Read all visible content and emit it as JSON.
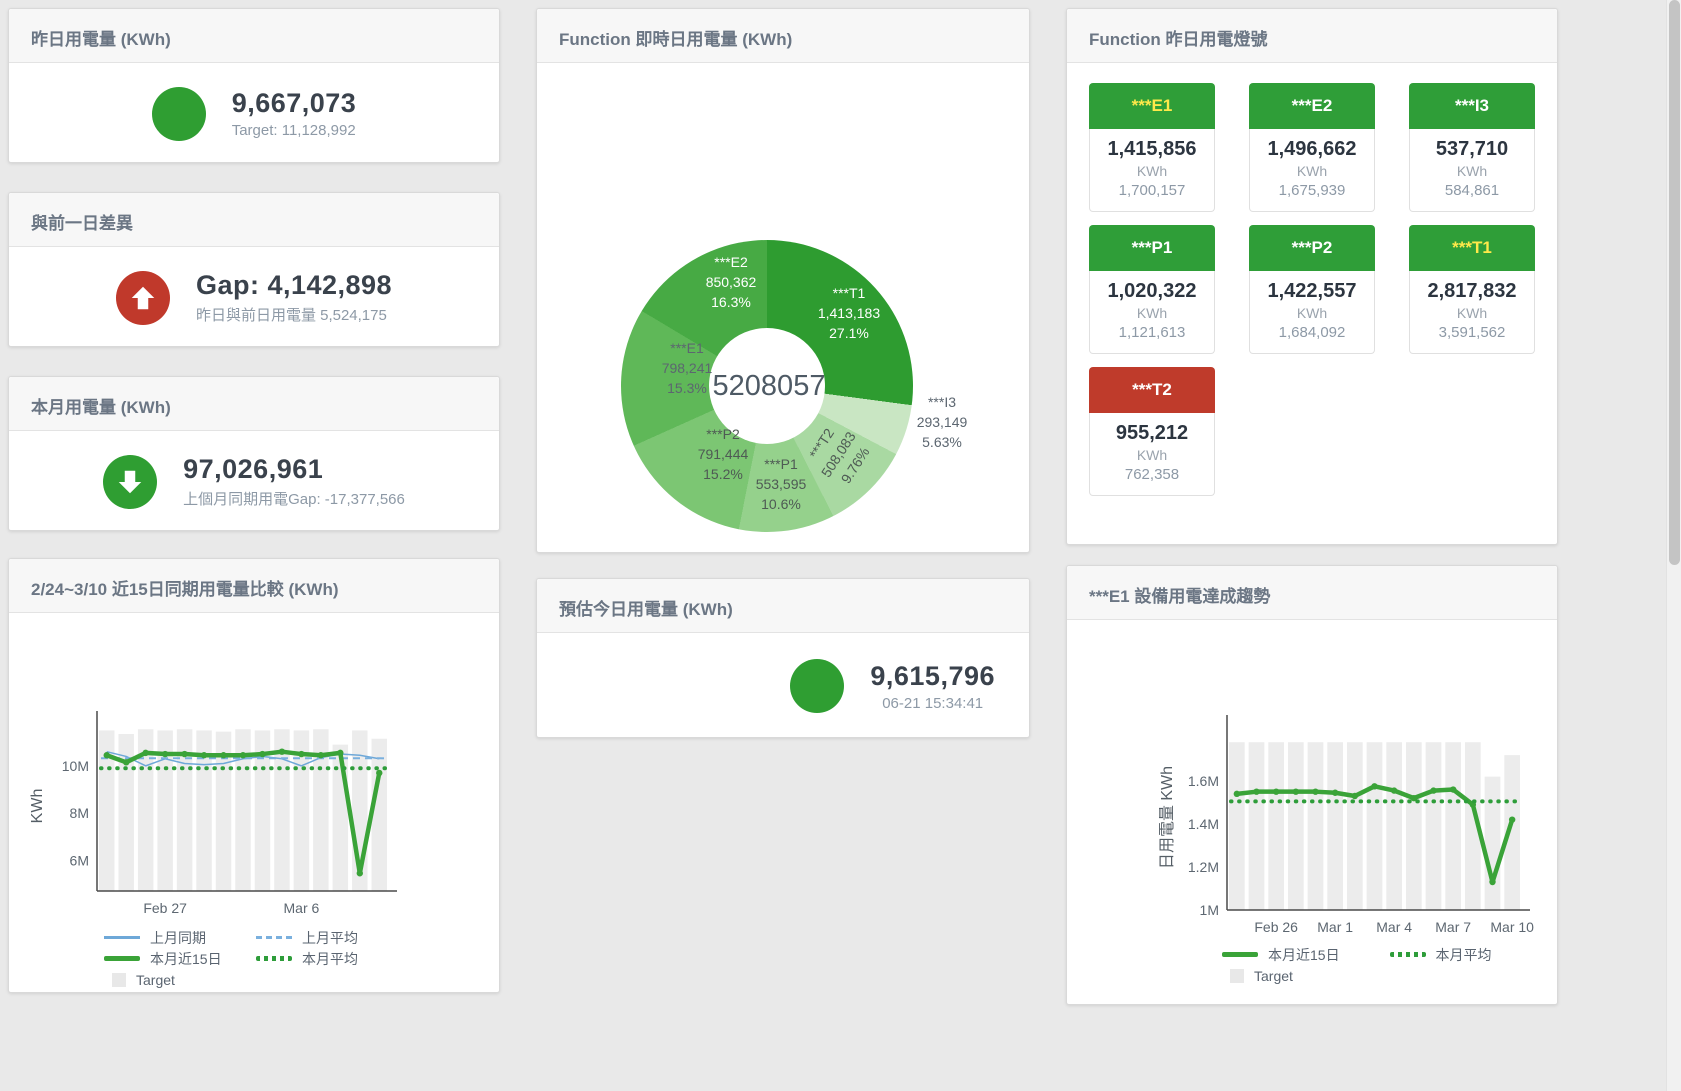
{
  "colors": {
    "green": "#2f9e32",
    "red": "#c0392b",
    "tile_green": "#2f9e38",
    "tile_red": "#bf3b2b"
  },
  "panels": {
    "yesterday": {
      "title": "昨日用電量 (KWh)",
      "value": "9,667,073",
      "subtitle": "Target: 11,128,992",
      "status_color": "#2f9e32"
    },
    "day_gap": {
      "title": "與前一日差異",
      "value": "Gap: 4,142,898",
      "subtitle": "昨日與前日用電量 5,524,175",
      "status_color": "#c0392b"
    },
    "month": {
      "title": "本月用電量 (KWh)",
      "value": "97,026,961",
      "subtitle": "上個月同期用電Gap: -17,377,566",
      "status_color": "#2f9e32"
    },
    "estimate": {
      "title": "預估今日用電量 (KWh)",
      "value": "9,615,796",
      "subtitle": "06-21 15:34:41",
      "status_color": "#2f9e32"
    },
    "realtime_donut": {
      "title": "Function 即時日用電量 (KWh)"
    },
    "lights": {
      "title": "Function 昨日用電燈號",
      "unit": "KWh",
      "tiles": [
        {
          "name": "***E1",
          "value": "1,415,856",
          "target": "1,700,157",
          "header_color": "#2f9e38",
          "label_color": "#ffe94a"
        },
        {
          "name": "***E2",
          "value": "1,496,662",
          "target": "1,675,939",
          "header_color": "#2f9e38",
          "label_color": "#ffffff"
        },
        {
          "name": "***I3",
          "value": "537,710",
          "target": "584,861",
          "header_color": "#2f9e38",
          "label_color": "#ffffff"
        },
        {
          "name": "***P1",
          "value": "1,020,322",
          "target": "1,121,613",
          "header_color": "#2f9e38",
          "label_color": "#ffffff"
        },
        {
          "name": "***P2",
          "value": "1,422,557",
          "target": "1,684,092",
          "header_color": "#2f9e38",
          "label_color": "#ffffff"
        },
        {
          "name": "***T1",
          "value": "2,817,832",
          "target": "3,591,562",
          "header_color": "#2f9e38",
          "label_color": "#ffe94a"
        },
        {
          "name": "***T2",
          "value": "955,212",
          "target": "762,358",
          "header_color": "#bf3b2b",
          "label_color": "#ffffff"
        }
      ]
    },
    "compare": {
      "title": "2/24~3/10 近15日同期用電量比較 (KWh)"
    },
    "trend": {
      "title": "***E1 設備用電達成趨勢"
    }
  },
  "chart_data": [
    {
      "type": "pie",
      "variant": "donut",
      "title": "Function 即時日用電量 (KWh)",
      "center_total": "5208057",
      "slices": [
        {
          "name": "***T1",
          "value": "1,413,183",
          "pct": "27.1%",
          "pct_num": 27.1,
          "color": "#2e9c30",
          "label_color": "#ffffff"
        },
        {
          "name": "***I3",
          "value": "293,149",
          "pct": "5.63%",
          "pct_num": 5.63,
          "color": "#c9e6c3",
          "label_color": "#5c6670"
        },
        {
          "name": "***T2",
          "value": "508,083",
          "pct": "9.76%",
          "pct_num": 9.76,
          "color": "#a9d9a2",
          "label_color": "#4e5a54"
        },
        {
          "name": "***P1",
          "value": "553,595",
          "pct": "10.6%",
          "pct_num": 10.6,
          "color": "#95d18c",
          "label_color": "#4e5a54"
        },
        {
          "name": "***P2",
          "value": "791,444",
          "pct": "15.2%",
          "pct_num": 15.2,
          "color": "#7cc673",
          "label_color": "#4e5a54"
        },
        {
          "name": "***E1",
          "value": "798,241",
          "pct": "15.3%",
          "pct_num": 15.3,
          "color": "#5fb858",
          "label_color": "#5c6670"
        },
        {
          "name": "***E2",
          "value": "850,362",
          "pct": "16.3%",
          "pct_num": 16.3,
          "color": "#47aa44",
          "label_color": "#ffffff"
        }
      ]
    },
    {
      "type": "line",
      "title": "2/24~3/10 近15日同期用電量比較 (KWh)",
      "ylabel": "KWh",
      "unit": "M",
      "ylim": [
        4.7,
        11.9
      ],
      "yticks": [
        {
          "label": "6M",
          "value": 6
        },
        {
          "label": "8M",
          "value": 8
        },
        {
          "label": "10M",
          "value": 10
        }
      ],
      "categories": [
        "2/24",
        "2/25",
        "2/26",
        "2/27",
        "2/28",
        "3/1",
        "3/2",
        "3/3",
        "3/4",
        "3/5",
        "3/6",
        "3/7",
        "3/8",
        "3/9",
        "3/10"
      ],
      "xticks": [
        {
          "label": "Feb 27",
          "index": 3
        },
        {
          "label": "Mar 6",
          "index": 10
        }
      ],
      "bars": {
        "name": "Target",
        "color": "#ececec",
        "values": [
          11.5,
          11.35,
          11.55,
          11.5,
          11.55,
          11.5,
          11.45,
          11.55,
          11.5,
          11.55,
          11.5,
          11.55,
          10.9,
          11.5,
          11.15
        ]
      },
      "series": [
        {
          "name": "上月同期",
          "color": "#6ea8d8",
          "width": 1.5,
          "dash": "solid",
          "values": [
            10.6,
            10.4,
            10.0,
            10.3,
            10.1,
            10.05,
            10.1,
            10.3,
            10.4,
            10.3,
            10.0,
            10.35,
            10.5,
            10.45,
            10.3
          ]
        },
        {
          "name": "上月平均",
          "color": "#7ab0de",
          "width": 2,
          "dash": "dashed",
          "constant": 10.32
        },
        {
          "name": "本月近15日",
          "color": "#3aa338",
          "width": 4.5,
          "dash": "solid",
          "markers": true,
          "values": [
            10.45,
            10.15,
            10.55,
            10.5,
            10.5,
            10.45,
            10.45,
            10.45,
            10.5,
            10.6,
            10.5,
            10.45,
            10.55,
            5.45,
            9.7
          ]
        },
        {
          "name": "本月平均",
          "color": "#2e9d3a",
          "width": 4,
          "dash": "dotted",
          "constant": 9.9
        }
      ],
      "legend_rows": [
        [
          {
            "label": "上月同期",
            "swatch": "line",
            "color": "#6ea8d8"
          },
          {
            "label": "上月平均",
            "swatch": "dashed",
            "color": "#7ab0de"
          }
        ],
        [
          {
            "label": "本月近15日",
            "swatch": "thick",
            "color": "#3aa338"
          },
          {
            "label": "本月平均",
            "swatch": "dotted",
            "color": "#2e9d3a"
          }
        ],
        [
          {
            "label": "Target",
            "swatch": "box",
            "color": "#e8e8e8"
          }
        ]
      ],
      "legend_position": "bottom-left",
      "grid": false
    },
    {
      "type": "line",
      "title": "***E1 設備用電達成趨勢",
      "ylabel": "日用電量 KWh",
      "unit": "M",
      "ylim": [
        1.0,
        1.86
      ],
      "yticks": [
        {
          "label": "1M",
          "value": 1
        },
        {
          "label": "1.2M",
          "value": 1.2
        },
        {
          "label": "1.4M",
          "value": 1.4
        },
        {
          "label": "1.6M",
          "value": 1.6
        }
      ],
      "categories": [
        "2/24",
        "2/25",
        "2/26",
        "2/27",
        "2/28",
        "3/1",
        "3/2",
        "3/3",
        "3/4",
        "3/5",
        "3/6",
        "3/7",
        "3/8",
        "3/9",
        "3/10"
      ],
      "xticks": [
        {
          "label": "Feb 26",
          "index": 2
        },
        {
          "label": "Mar 1",
          "index": 5
        },
        {
          "label": "Mar 4",
          "index": 8
        },
        {
          "label": "Mar 7",
          "index": 11
        },
        {
          "label": "Mar 10",
          "index": 14
        }
      ],
      "bars": {
        "name": "Target",
        "color": "#ececec",
        "values": [
          1.78,
          1.78,
          1.78,
          1.78,
          1.78,
          1.78,
          1.78,
          1.78,
          1.78,
          1.78,
          1.78,
          1.78,
          1.78,
          1.62,
          1.72
        ]
      },
      "series": [
        {
          "name": "本月近15日",
          "color": "#3aa338",
          "width": 4.5,
          "dash": "solid",
          "markers": true,
          "values": [
            1.54,
            1.55,
            1.55,
            1.55,
            1.55,
            1.545,
            1.53,
            1.575,
            1.555,
            1.52,
            1.555,
            1.56,
            1.49,
            1.13,
            1.42
          ]
        },
        {
          "name": "本月平均",
          "color": "#2e9d3a",
          "width": 4,
          "dash": "dotted",
          "constant": 1.505
        }
      ],
      "legend_rows": [
        [
          {
            "label": "本月近15日",
            "swatch": "thick",
            "color": "#3aa338"
          },
          {
            "label": "本月平均",
            "swatch": "dotted",
            "color": "#2e9d3a"
          }
        ],
        [
          {
            "label": "Target",
            "swatch": "box",
            "color": "#e8e8e8"
          }
        ]
      ],
      "legend_position": "bottom-left",
      "grid": false
    }
  ]
}
